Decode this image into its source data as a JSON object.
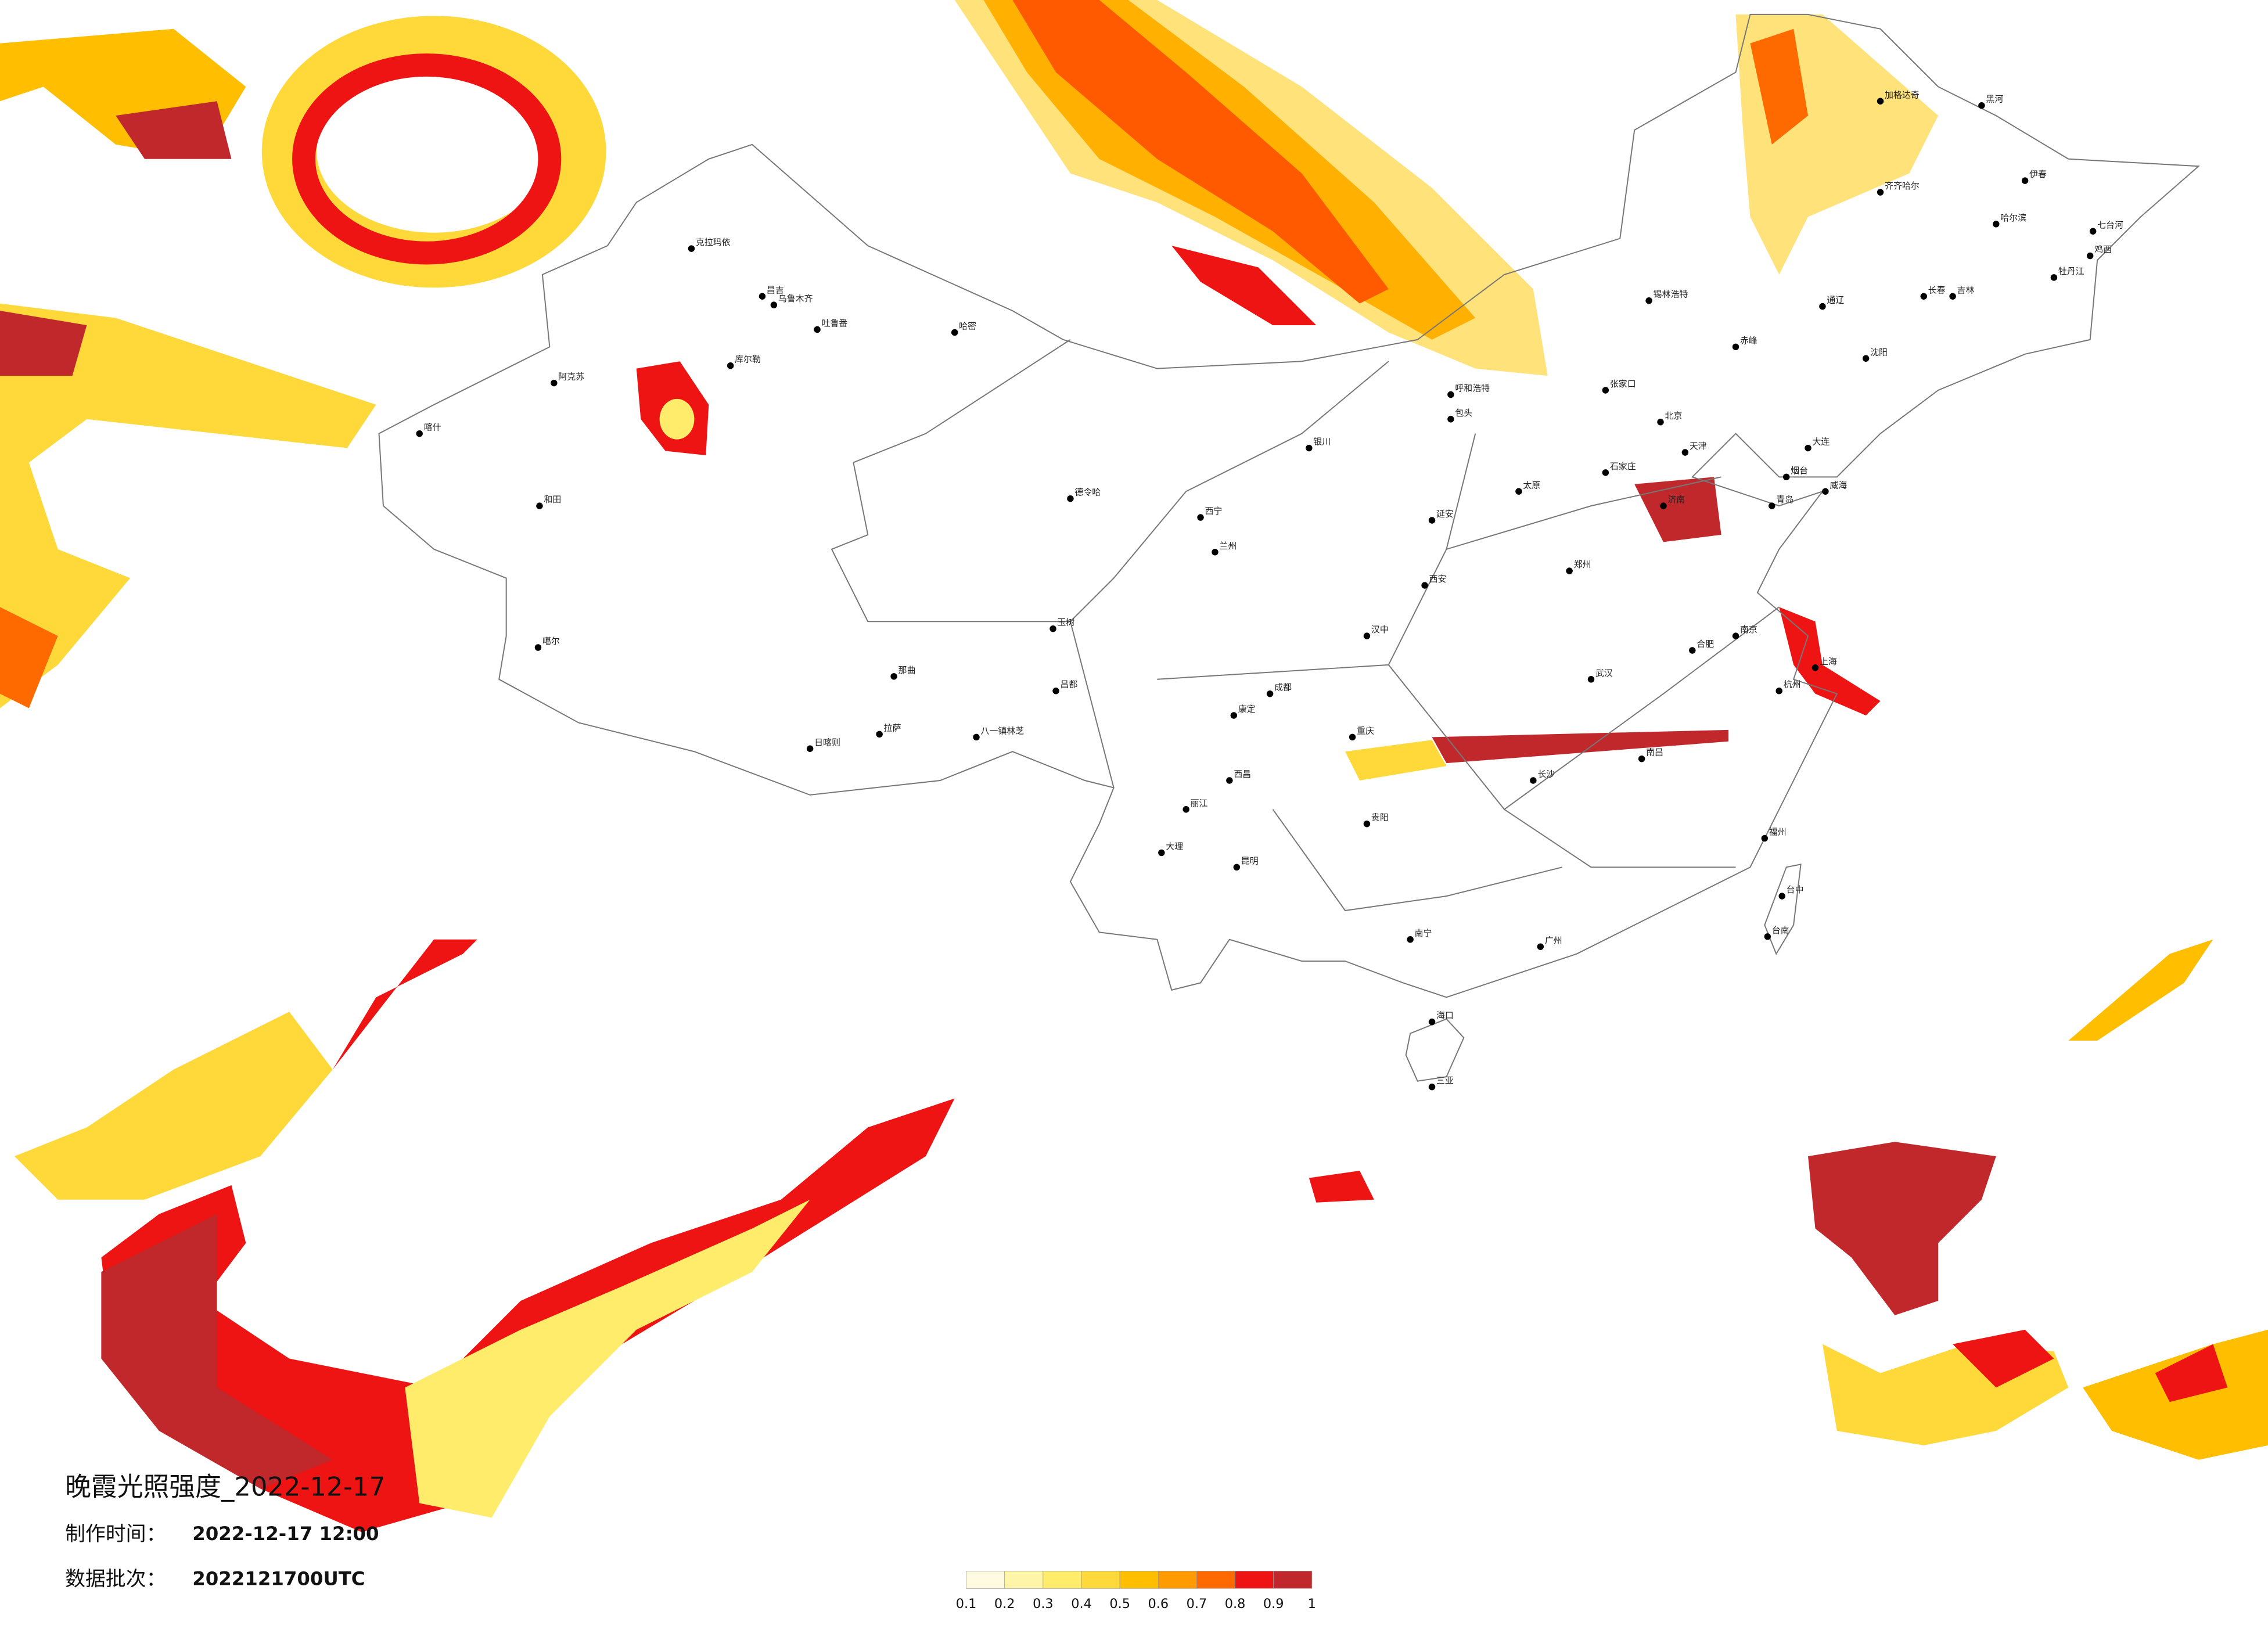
{
  "title": "晚霞光照强度_2022-12-17",
  "production_time": {
    "label": "制作时间：",
    "value": "2022-12-17 12:00"
  },
  "data_batch": {
    "label": "数据批次：",
    "value": "2022121700UTC"
  },
  "colorbar": {
    "ticks": [
      0.1,
      0.2,
      0.3,
      0.4,
      0.5,
      0.6,
      0.7,
      0.8,
      0.9,
      1
    ],
    "colors": [
      "#fffbe0",
      "#fff5a8",
      "#ffec6a",
      "#ffd83a",
      "#ffbe00",
      "#ff9a00",
      "#ff6a00",
      "#ee1414",
      "#c0282c"
    ]
  },
  "cities": [
    "克拉玛依",
    "昌吉",
    "乌鲁木齐",
    "吐鲁番",
    "哈密",
    "库尔勒",
    "阿克苏",
    "和田",
    "喀什",
    "德令哈",
    "日喀则",
    "拉萨",
    "八一镇林芝",
    "那曲",
    "噶尔",
    "玉树",
    "昌都",
    "西宁",
    "兰州",
    "银川",
    "呼和浩特",
    "包头",
    "锡林浩特",
    "北京",
    "天津",
    "石家庄",
    "太原",
    "济南",
    "郑州",
    "西安",
    "武汉",
    "南京",
    "上海",
    "杭州",
    "合肥",
    "南昌",
    "长沙",
    "福州",
    "广州",
    "南宁",
    "贵阳",
    "昆明",
    "成都",
    "重庆",
    "海口",
    "三亚",
    "台中",
    "台南",
    "哈尔滨",
    "长春",
    "沈阳",
    "大连",
    "齐齐哈尔",
    "加格达奇",
    "黑河",
    "伊春",
    "牡丹江",
    "鸡西",
    "七台河",
    "通辽",
    "赤峰",
    "张家口",
    "延安",
    "汉中",
    "康定",
    "西昌",
    "大理",
    "丽江",
    "吉林",
    "青岛",
    "烟台",
    "威海"
  ]
}
